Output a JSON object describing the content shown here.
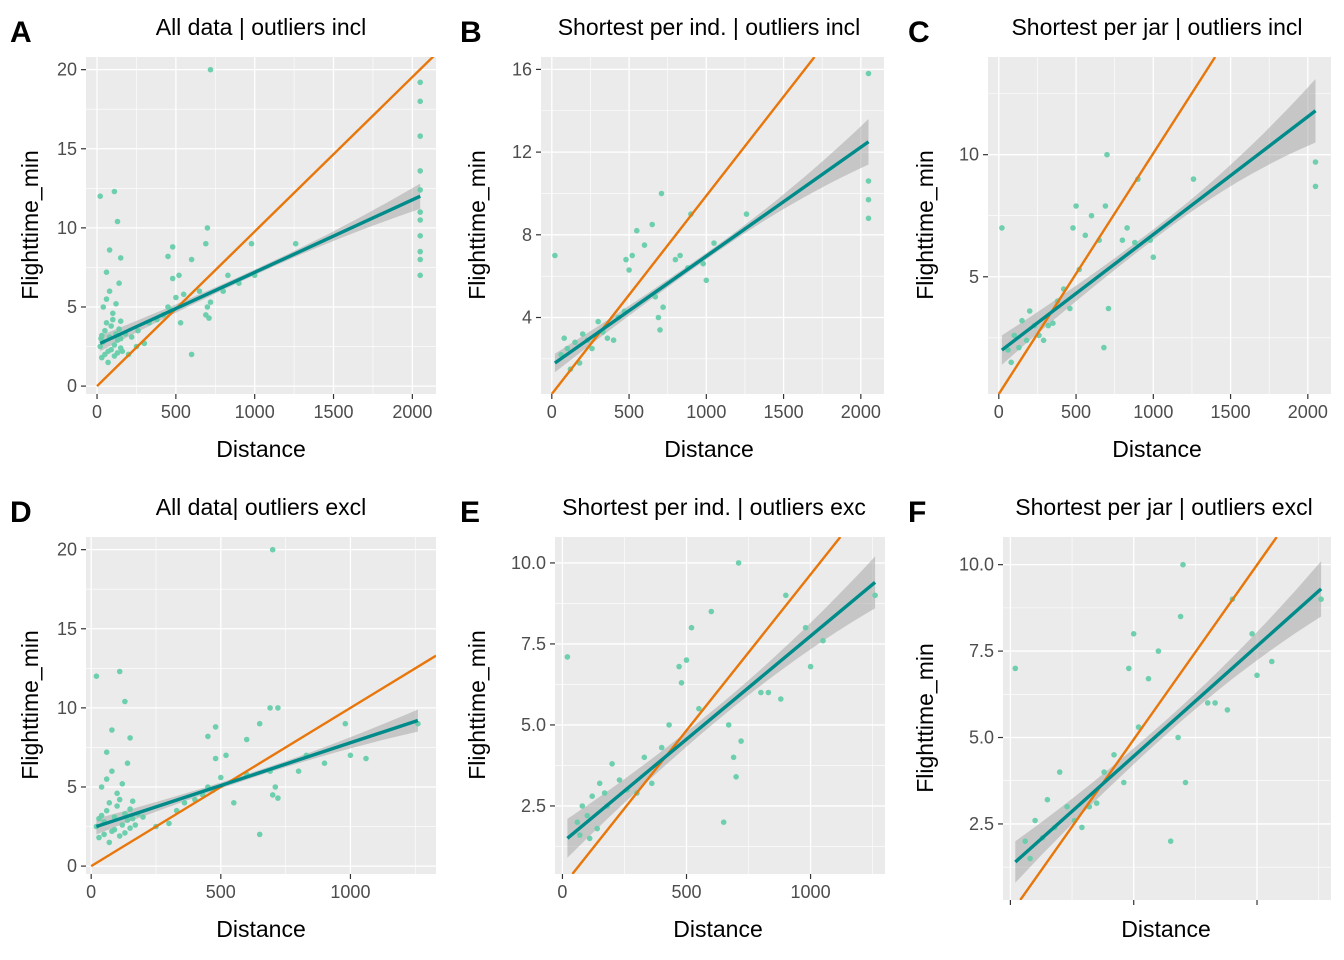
{
  "chart_data": [
    {
      "type": "scatter",
      "panel": "A",
      "title": "All data | outliers incl",
      "xlabel": "Distance",
      "ylabel": "Flighttime_min",
      "xlim": [
        -70,
        2150
      ],
      "ylim": [
        -0.5,
        20.8
      ],
      "xticks": [
        0,
        500,
        1000,
        1500,
        2000
      ],
      "xtick_labels": [
        "0",
        "500",
        "1000",
        "1500",
        "2000"
      ],
      "yticks": [
        0,
        5,
        10,
        15,
        20
      ],
      "ytick_labels": [
        "0",
        "5",
        "10",
        "15",
        "20"
      ],
      "grid": true,
      "series": [
        {
          "kind": "points",
          "color": "#66CDAA",
          "x": [
            20,
            25,
            30,
            40,
            50,
            60,
            70,
            80,
            90,
            100,
            110,
            120,
            130,
            140,
            150,
            30,
            50,
            70,
            90,
            110,
            130,
            150,
            40,
            60,
            80,
            100,
            120,
            140,
            160,
            200,
            250,
            300,
            150,
            180,
            220,
            260,
            330,
            380,
            420,
            450,
            470,
            480,
            500,
            520,
            530,
            550,
            600,
            650,
            690,
            700,
            710,
            720,
            450,
            480,
            600,
            690,
            700,
            720,
            800,
            830,
            900,
            980,
            1000,
            1260,
            20,
            60,
            80,
            110,
            130,
            150,
            2050,
            2050,
            2050,
            2050,
            2050,
            2050,
            2050,
            2050,
            2050,
            2050,
            2050
          ],
          "y": [
            2.5,
            3.0,
            3.2,
            2.8,
            3.5,
            4.0,
            2.2,
            3.1,
            3.8,
            4.2,
            2.6,
            3.3,
            2.9,
            3.6,
            4.1,
            1.8,
            2.0,
            1.5,
            2.3,
            1.9,
            2.1,
            2.4,
            5.0,
            5.5,
            6.0,
            4.6,
            5.2,
            6.5,
            2.2,
            2.0,
            2.5,
            2.7,
            3.0,
            3.3,
            3.1,
            3.5,
            4.0,
            4.2,
            4.5,
            5.0,
            4.8,
            6.8,
            5.6,
            7.0,
            4.0,
            5.8,
            2.0,
            6.0,
            4.5,
            5.0,
            4.3,
            5.3,
            8.2,
            8.8,
            8.0,
            9.0,
            10.0,
            20.0,
            6.0,
            7.0,
            6.5,
            9.0,
            7.0,
            9.0,
            12.0,
            7.2,
            8.6,
            12.3,
            10.4,
            8.1,
            19.2,
            18.0,
            15.8,
            13.6,
            12.4,
            11.0,
            10.5,
            9.5,
            8.5,
            8.0,
            7.0
          ]
        },
        {
          "kind": "regression",
          "color": "#008B8B",
          "x": [
            20,
            2050
          ],
          "y": [
            2.7,
            12.0
          ],
          "ci_lower": [
            2.2,
            11.2
          ],
          "ci_upper": [
            3.2,
            12.8
          ]
        },
        {
          "kind": "reference",
          "color": "#E8760A",
          "x": [
            0,
            2150
          ],
          "y": [
            0,
            21.0
          ]
        }
      ]
    },
    {
      "type": "scatter",
      "panel": "B",
      "title": "Shortest per ind. | outliers incl",
      "xlabel": "Distance",
      "ylabel": "Flighttime_min",
      "xlim": [
        -70,
        2150
      ],
      "ylim": [
        0.3,
        16.6
      ],
      "xticks": [
        0,
        500,
        1000,
        1500,
        2000
      ],
      "xtick_labels": [
        "0",
        "500",
        "1000",
        "1500",
        "2000"
      ],
      "yticks": [
        4,
        8,
        12,
        16
      ],
      "ytick_labels": [
        "4",
        "8",
        "12",
        "16"
      ],
      "grid": true,
      "series": [
        {
          "kind": "points",
          "color": "#66CDAA",
          "x": [
            20,
            60,
            80,
            100,
            120,
            150,
            180,
            200,
            230,
            260,
            300,
            330,
            360,
            400,
            430,
            470,
            480,
            500,
            520,
            550,
            600,
            650,
            670,
            690,
            700,
            710,
            720,
            800,
            830,
            880,
            900,
            980,
            1000,
            1050,
            1260,
            2050,
            2050,
            2050,
            2050
          ],
          "y": [
            7.0,
            2.2,
            3.0,
            2.5,
            1.5,
            2.8,
            1.8,
            3.2,
            2.9,
            2.5,
            3.8,
            3.3,
            3.0,
            2.9,
            4.0,
            4.3,
            6.8,
            6.3,
            7.0,
            8.2,
            7.5,
            8.5,
            5.0,
            4.0,
            3.4,
            10.0,
            4.5,
            6.8,
            7.0,
            6.4,
            9.0,
            6.6,
            5.8,
            7.6,
            9.0,
            15.8,
            10.6,
            9.7,
            8.8
          ]
        },
        {
          "kind": "regression",
          "color": "#008B8B",
          "x": [
            20,
            2050
          ],
          "y": [
            1.8,
            12.5
          ],
          "ci_lower": [
            1.4,
            11.4
          ],
          "ci_upper": [
            2.3,
            13.6
          ]
        },
        {
          "kind": "reference",
          "color": "#E8760A",
          "x": [
            0,
            1700
          ],
          "y": [
            0.3,
            16.6
          ]
        }
      ]
    },
    {
      "type": "scatter",
      "panel": "C",
      "title": "Shortest per jar | outliers incl",
      "xlabel": "Distance",
      "ylabel": "Flighttime_min",
      "xlim": [
        -70,
        2150
      ],
      "ylim": [
        0.2,
        14.0
      ],
      "xticks": [
        0,
        500,
        1000,
        1500,
        2000
      ],
      "xtick_labels": [
        "0",
        "500",
        "1000",
        "1500",
        "2000"
      ],
      "yticks": [
        5,
        10
      ],
      "ytick_labels": [
        "5",
        "10"
      ],
      "grid": true,
      "series": [
        {
          "kind": "points",
          "color": "#66CDAA",
          "x": [
            20,
            60,
            80,
            100,
            130,
            150,
            180,
            200,
            230,
            260,
            290,
            320,
            350,
            380,
            420,
            460,
            480,
            500,
            520,
            560,
            600,
            650,
            680,
            690,
            700,
            710,
            800,
            830,
            880,
            900,
            980,
            1000,
            1260,
            2050,
            2050
          ],
          "y": [
            7.0,
            2.0,
            1.5,
            2.6,
            2.1,
            3.2,
            2.4,
            3.6,
            3.0,
            2.6,
            2.4,
            3.0,
            3.1,
            4.0,
            4.5,
            3.7,
            7.0,
            7.9,
            5.3,
            6.7,
            7.5,
            6.5,
            2.1,
            7.9,
            10.0,
            3.7,
            6.5,
            7.0,
            6.4,
            9.0,
            6.5,
            5.8,
            9.0,
            9.7,
            8.7
          ]
        },
        {
          "kind": "regression",
          "color": "#008B8B",
          "x": [
            20,
            2050
          ],
          "y": [
            2.0,
            11.8
          ],
          "ci_lower": [
            1.4,
            10.5
          ],
          "ci_upper": [
            2.6,
            13.1
          ]
        },
        {
          "kind": "reference",
          "color": "#E8760A",
          "x": [
            0,
            1400
          ],
          "y": [
            0.2,
            14.0
          ]
        }
      ]
    },
    {
      "type": "scatter",
      "panel": "D",
      "title": "All data| outliers excl",
      "xlabel": "Distance",
      "ylabel": "Flighttime_min",
      "xlim": [
        -20,
        1330
      ],
      "ylim": [
        -0.5,
        20.8
      ],
      "xticks": [
        0,
        500,
        1000
      ],
      "xtick_labels": [
        "0",
        "500",
        "1000"
      ],
      "yticks": [
        0,
        5,
        10,
        15,
        20
      ],
      "ytick_labels": [
        "0",
        "5",
        "10",
        "15",
        "20"
      ],
      "grid": true,
      "series": [
        {
          "kind": "points",
          "color": "#66CDAA",
          "x": [
            20,
            30,
            40,
            50,
            60,
            70,
            80,
            90,
            100,
            110,
            120,
            130,
            140,
            150,
            160,
            30,
            50,
            70,
            90,
            110,
            130,
            150,
            170,
            40,
            60,
            80,
            100,
            120,
            140,
            160,
            180,
            200,
            250,
            300,
            330,
            360,
            400,
            430,
            450,
            470,
            480,
            500,
            520,
            550,
            600,
            650,
            690,
            700,
            710,
            720,
            20,
            60,
            80,
            110,
            130,
            150,
            450,
            480,
            600,
            650,
            690,
            700,
            720,
            800,
            830,
            900,
            980,
            1000,
            1060,
            1260
          ],
          "y": [
            2.5,
            3.0,
            3.2,
            2.8,
            3.5,
            4.0,
            2.2,
            3.1,
            3.8,
            4.2,
            2.6,
            3.3,
            2.9,
            3.6,
            4.1,
            1.8,
            2.0,
            1.5,
            2.3,
            1.9,
            2.1,
            2.4,
            2.6,
            5.0,
            5.5,
            6.0,
            4.6,
            5.2,
            6.5,
            3.0,
            3.3,
            3.1,
            2.5,
            2.7,
            3.5,
            4.0,
            4.2,
            4.5,
            5.0,
            4.8,
            6.8,
            5.6,
            7.0,
            4.0,
            5.8,
            2.0,
            6.0,
            4.5,
            5.0,
            4.3,
            12.0,
            7.2,
            8.6,
            12.3,
            10.4,
            8.1,
            8.2,
            8.8,
            8.0,
            9.0,
            10.0,
            20.0,
            10.0,
            6.0,
            7.0,
            6.5,
            9.0,
            7.0,
            6.8,
            9.0
          ]
        },
        {
          "kind": "regression",
          "color": "#008B8B",
          "x": [
            20,
            1260
          ],
          "y": [
            2.5,
            9.2
          ],
          "ci_lower": [
            2.0,
            8.5
          ],
          "ci_upper": [
            3.0,
            9.9
          ]
        },
        {
          "kind": "reference",
          "color": "#E8760A",
          "x": [
            0,
            1330
          ],
          "y": [
            0,
            13.3
          ]
        }
      ]
    },
    {
      "type": "scatter",
      "panel": "E",
      "title": "Shortest per ind. | outliers exc",
      "xlabel": "Distance",
      "ylabel": "Flighttime_min",
      "xlim": [
        -30,
        1300
      ],
      "ylim": [
        0.4,
        10.8
      ],
      "xticks": [
        0,
        500,
        1000
      ],
      "xtick_labels": [
        "0",
        "500",
        "1000"
      ],
      "yticks": [
        2.5,
        5.0,
        7.5,
        10.0
      ],
      "ytick_labels": [
        "2.5",
        "5.0",
        "7.5",
        "10.0"
      ],
      "grid": true,
      "series": [
        {
          "kind": "points",
          "color": "#66CDAA",
          "x": [
            20,
            60,
            70,
            80,
            100,
            110,
            120,
            140,
            150,
            170,
            180,
            200,
            230,
            260,
            300,
            330,
            360,
            400,
            430,
            470,
            480,
            500,
            520,
            550,
            600,
            650,
            670,
            690,
            700,
            710,
            720,
            800,
            830,
            880,
            900,
            980,
            1000,
            1050,
            1260
          ],
          "y": [
            7.1,
            2.0,
            1.6,
            2.5,
            2.2,
            1.5,
            2.8,
            1.8,
            3.2,
            2.9,
            2.5,
            3.8,
            3.3,
            3.0,
            2.9,
            4.0,
            3.2,
            4.3,
            5.0,
            6.8,
            6.3,
            7.0,
            8.0,
            5.5,
            8.5,
            2.0,
            5.0,
            4.0,
            3.4,
            10.0,
            4.5,
            6.0,
            6.0,
            5.8,
            9.0,
            8.0,
            6.8,
            7.6,
            9.0
          ]
        },
        {
          "kind": "regression",
          "color": "#008B8B",
          "x": [
            20,
            1260
          ],
          "y": [
            1.5,
            9.4
          ],
          "ci_lower": [
            0.9,
            8.6
          ],
          "ci_upper": [
            2.1,
            10.2
          ]
        },
        {
          "kind": "reference",
          "color": "#E8760A",
          "x": [
            40,
            1120
          ],
          "y": [
            0.4,
            10.8
          ]
        }
      ]
    },
    {
      "type": "scatter",
      "panel": "F",
      "title": "Shortest per jar | outliers excl",
      "xlabel": "Distance",
      "ylabel": "Flighttime_min",
      "xlim": [
        -30,
        1300
      ],
      "ylim": [
        0.3,
        10.8
      ],
      "xticks": [
        0,
        500,
        1000
      ],
      "xtick_labels": [
        "",
        "",
        ""
      ],
      "yticks": [
        2.5,
        5.0,
        7.5,
        10.0
      ],
      "ytick_labels": [
        "2.5",
        "5.0",
        "7.5",
        "10.0"
      ],
      "grid": true,
      "series": [
        {
          "kind": "points",
          "color": "#66CDAA",
          "x": [
            20,
            60,
            80,
            100,
            130,
            150,
            180,
            200,
            230,
            260,
            290,
            320,
            350,
            380,
            420,
            460,
            480,
            500,
            520,
            560,
            600,
            650,
            680,
            690,
            700,
            710,
            800,
            830,
            880,
            900,
            980,
            1000,
            1060,
            1260
          ],
          "y": [
            7.0,
            2.0,
            1.5,
            2.6,
            2.1,
            3.2,
            2.4,
            4.0,
            3.0,
            2.6,
            2.4,
            3.0,
            3.1,
            4.0,
            4.5,
            3.7,
            7.0,
            8.0,
            5.3,
            6.7,
            7.5,
            2.0,
            5.0,
            8.5,
            10.0,
            3.7,
            6.0,
            6.0,
            5.8,
            9.0,
            8.0,
            6.8,
            7.2,
            9.0
          ]
        },
        {
          "kind": "regression",
          "color": "#008B8B",
          "x": [
            20,
            1260
          ],
          "y": [
            1.4,
            9.3
          ],
          "ci_lower": [
            0.8,
            8.5
          ],
          "ci_upper": [
            2.0,
            10.1
          ]
        },
        {
          "kind": "reference",
          "color": "#E8760A",
          "x": [
            40,
            1080
          ],
          "y": [
            0.3,
            10.8
          ]
        }
      ]
    }
  ]
}
